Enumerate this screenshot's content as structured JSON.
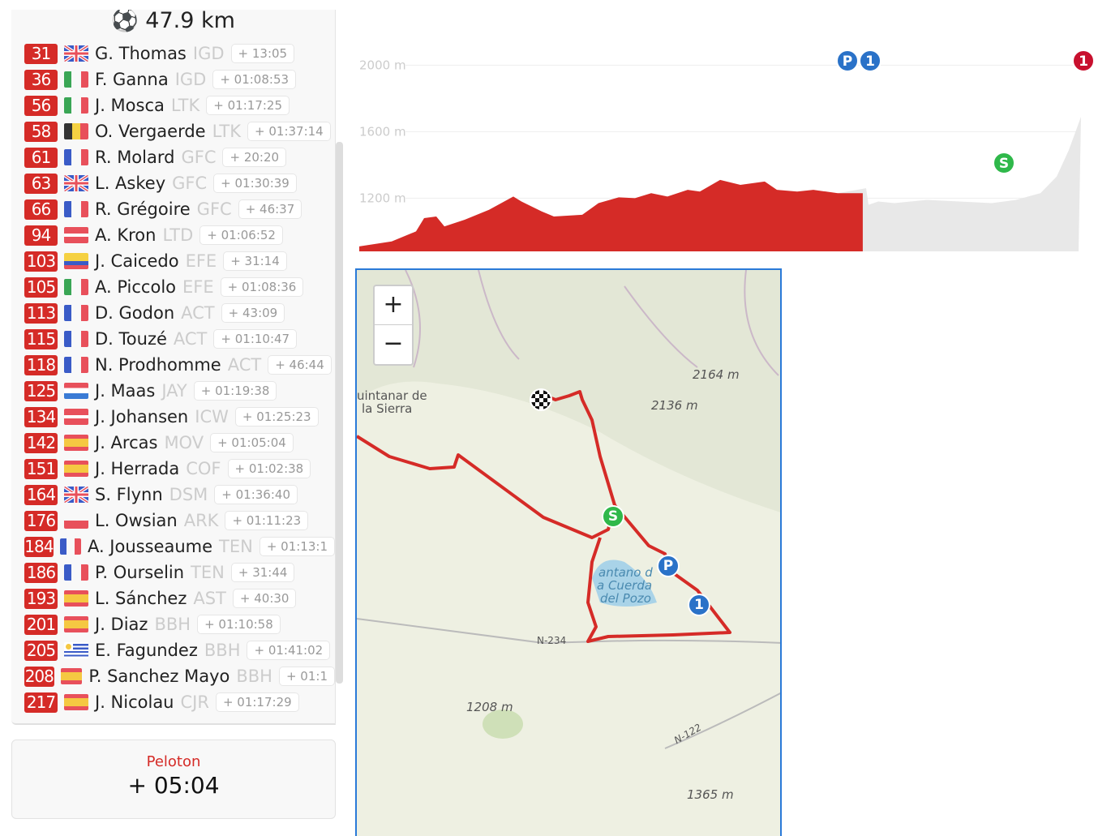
{
  "distance": {
    "icon": "checkered-flag-icon",
    "value": "47.9 km"
  },
  "riders": [
    {
      "bib": "31",
      "flag": "gb",
      "name": "G. Thomas",
      "team": "IGD",
      "gap": "+ 13:05"
    },
    {
      "bib": "36",
      "flag": "it",
      "name": "F. Ganna",
      "team": "IGD",
      "gap": "+ 01:08:53"
    },
    {
      "bib": "56",
      "flag": "it",
      "name": "J. Mosca",
      "team": "LTK",
      "gap": "+ 01:17:25"
    },
    {
      "bib": "58",
      "flag": "be",
      "name": "O. Vergaerde",
      "team": "LTK",
      "gap": "+ 01:37:14"
    },
    {
      "bib": "61",
      "flag": "fr",
      "name": "R. Molard",
      "team": "GFC",
      "gap": "+ 20:20"
    },
    {
      "bib": "63",
      "flag": "gb",
      "name": "L. Askey",
      "team": "GFC",
      "gap": "+ 01:30:39"
    },
    {
      "bib": "66",
      "flag": "fr",
      "name": "R. Grégoire",
      "team": "GFC",
      "gap": "+ 46:37"
    },
    {
      "bib": "94",
      "flag": "dk",
      "name": "A. Kron",
      "team": "LTD",
      "gap": "+ 01:06:52"
    },
    {
      "bib": "103",
      "flag": "ec",
      "name": "J. Caicedo",
      "team": "EFE",
      "gap": "+ 31:14"
    },
    {
      "bib": "105",
      "flag": "it",
      "name": "A. Piccolo",
      "team": "EFE",
      "gap": "+ 01:08:36"
    },
    {
      "bib": "113",
      "flag": "fr",
      "name": "D. Godon",
      "team": "ACT",
      "gap": "+ 43:09"
    },
    {
      "bib": "115",
      "flag": "fr",
      "name": "D. Touzé",
      "team": "ACT",
      "gap": "+ 01:10:47"
    },
    {
      "bib": "118",
      "flag": "fr",
      "name": "N. Prodhomme",
      "team": "ACT",
      "gap": "+ 46:44"
    },
    {
      "bib": "125",
      "flag": "nl",
      "name": "J. Maas",
      "team": "JAY",
      "gap": "+ 01:19:38"
    },
    {
      "bib": "134",
      "flag": "dk",
      "name": "J. Johansen",
      "team": "ICW",
      "gap": "+ 01:25:23"
    },
    {
      "bib": "142",
      "flag": "es",
      "name": "J. Arcas",
      "team": "MOV",
      "gap": "+ 01:05:04"
    },
    {
      "bib": "151",
      "flag": "es",
      "name": "J. Herrada",
      "team": "COF",
      "gap": "+ 01:02:38"
    },
    {
      "bib": "164",
      "flag": "gb",
      "name": "S. Flynn",
      "team": "DSM",
      "gap": "+ 01:36:40"
    },
    {
      "bib": "176",
      "flag": "pl",
      "name": "L. Owsian",
      "team": "ARK",
      "gap": "+ 01:11:23"
    },
    {
      "bib": "184",
      "flag": "fr",
      "name": "A. Jousseaume",
      "team": "TEN",
      "gap": "+ 01:13:1"
    },
    {
      "bib": "186",
      "flag": "fr",
      "name": "P. Ourselin",
      "team": "TEN",
      "gap": "+ 31:44"
    },
    {
      "bib": "193",
      "flag": "es",
      "name": "L. Sánchez",
      "team": "AST",
      "gap": "+ 40:30"
    },
    {
      "bib": "201",
      "flag": "es",
      "name": "J. Diaz",
      "team": "BBH",
      "gap": "+ 01:10:58"
    },
    {
      "bib": "205",
      "flag": "uy",
      "name": "E. Fagundez",
      "team": "BBH",
      "gap": "+ 01:41:02"
    },
    {
      "bib": "208",
      "flag": "es",
      "name": "P. Sanchez Mayo",
      "team": "BBH",
      "gap": "+ 01:1"
    },
    {
      "bib": "217",
      "flag": "es",
      "name": "J. Nicolau",
      "team": "CJR",
      "gap": "+ 01:17:29"
    }
  ],
  "peloton": {
    "label": "Peloton",
    "gap": "+ 05:04"
  },
  "profile": {
    "y_ticks": [
      "2000 m",
      "1600 m",
      "1200 m"
    ],
    "progress_percent": 70,
    "done_color": "#d52b27",
    "todo_color": "#e8e8e8",
    "markers": [
      {
        "label": "P",
        "color": "#2a72c8"
      },
      {
        "label": "1",
        "color": "#2a72c8"
      },
      {
        "label": "S",
        "color": "#2fb84a"
      },
      {
        "label": "1",
        "color": "#c8102e"
      }
    ]
  },
  "map": {
    "zoom_in": "+",
    "zoom_out": "−",
    "labels": [
      "uintanar de",
      "la Sierra",
      "2164 m",
      "2136 m",
      "antano d",
      "a Cuerda",
      "del Pozo",
      "N-234",
      "1208 m",
      "N-122",
      "1365 m"
    ],
    "markers": [
      {
        "label": "S",
        "color": "#2fb84a"
      },
      {
        "label": "P",
        "color": "#2a72c8"
      },
      {
        "label": "1",
        "color": "#2a72c8"
      }
    ],
    "route_color": "#d52b27"
  }
}
